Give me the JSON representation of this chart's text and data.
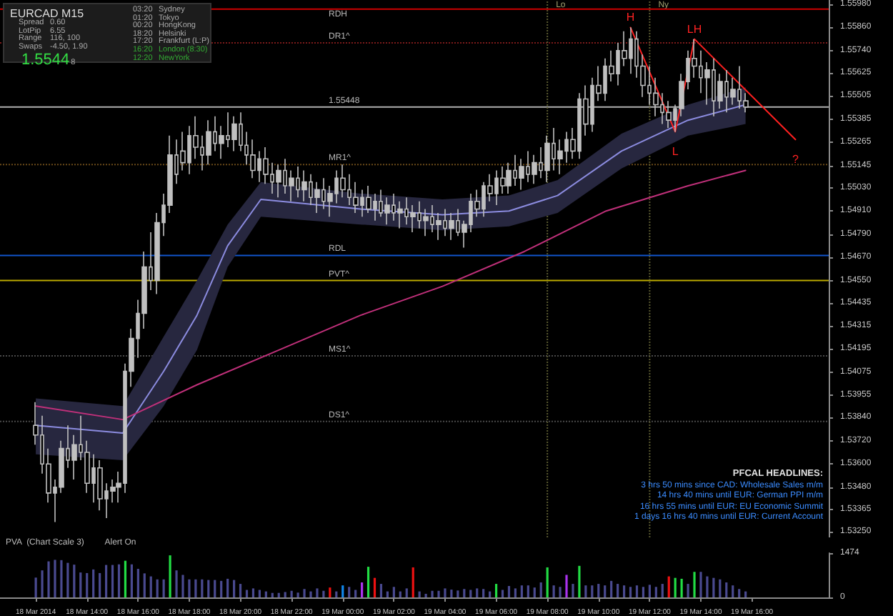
{
  "chart_data": [
    {
      "type": "candlestick",
      "color": "#c0c0c0",
      "tick_labels": "y",
      "xlim": [
        "2014-03-18T10:36",
        "2014-03-19T19:00"
      ],
      "ylim": [
        1.5322,
        1.56
      ],
      "yticks": [
        {
          "value": 1.5598,
          "label": "1.55980"
        },
        {
          "value": 1.5586,
          "label": "1.55860"
        },
        {
          "value": 1.5574,
          "label": "1.55740"
        },
        1.55625,
        1.55505,
        1.55385,
        1.55265,
        1.55145,
        {
          "value": 1.5503,
          "label": "1.55030"
        },
        {
          "value": 1.5491,
          "label": "1.54910"
        },
        {
          "value": 1.5479,
          "label": "1.54790"
        },
        {
          "value": 1.5467,
          "label": "1.54670"
        },
        {
          "value": 1.5455,
          "label": "1.54550"
        },
        1.54435,
        1.54315,
        1.54195,
        1.54075,
        1.53955,
        {
          "value": 1.5384,
          "label": "1.53840"
        },
        {
          "value": 1.5372,
          "label": "1.53720"
        },
        {
          "value": 1.536,
          "label": "1.53600"
        },
        {
          "value": 1.5348,
          "label": "1.53480"
        },
        1.53365,
        {
          "value": 1.5325,
          "label": "1.53250"
        }
      ],
      "x": [
        "2014-03-18T12:00",
        "2014-03-18T12:15",
        "2014-03-18T12:30",
        "2014-03-18T12:45",
        "2014-03-18T13:00",
        "2014-03-18T13:15",
        "2014-03-18T13:30",
        "2014-03-18T13:45",
        "2014-03-18T14:00",
        "2014-03-18T14:15",
        "2014-03-18T14:30",
        "2014-03-18T14:45",
        "2014-03-18T15:00",
        "2014-03-18T15:15",
        "2014-03-18T15:30",
        "2014-03-18T15:45",
        "2014-03-18T16:00",
        "2014-03-18T16:15",
        "2014-03-18T16:30",
        "2014-03-18T16:45",
        "2014-03-18T17:00",
        "2014-03-18T17:15",
        "2014-03-18T17:30",
        "2014-03-18T17:45",
        "2014-03-18T18:00",
        "2014-03-18T18:15",
        "2014-03-18T18:30",
        "2014-03-18T18:45",
        "2014-03-18T19:00",
        "2014-03-18T19:15",
        "2014-03-18T19:30",
        "2014-03-18T19:45",
        "2014-03-18T20:00",
        "2014-03-18T20:15",
        "2014-03-18T20:30",
        "2014-03-18T20:45",
        "2014-03-18T21:00",
        "2014-03-18T21:15",
        "2014-03-18T21:30",
        "2014-03-18T21:45",
        "2014-03-18T22:00",
        "2014-03-18T22:15",
        "2014-03-18T22:30",
        "2014-03-18T22:45",
        "2014-03-18T23:00",
        "2014-03-18T23:15",
        "2014-03-18T23:30",
        "2014-03-18T23:45",
        "2014-03-19T00:00",
        "2014-03-19T00:15",
        "2014-03-19T00:30",
        "2014-03-19T00:45",
        "2014-03-19T01:00",
        "2014-03-19T01:15",
        "2014-03-19T01:30",
        "2014-03-19T01:45",
        "2014-03-19T02:00",
        "2014-03-19T02:15",
        "2014-03-19T02:30",
        "2014-03-19T02:45",
        "2014-03-19T03:00",
        "2014-03-19T03:15",
        "2014-03-19T03:30",
        "2014-03-19T03:45",
        "2014-03-19T04:00",
        "2014-03-19T04:15",
        "2014-03-19T04:30",
        "2014-03-19T04:45",
        "2014-03-19T05:00",
        "2014-03-19T05:15",
        "2014-03-19T05:30",
        "2014-03-19T05:45",
        "2014-03-19T06:00",
        "2014-03-19T06:15",
        "2014-03-19T06:30",
        "2014-03-19T06:45",
        "2014-03-19T07:00",
        "2014-03-19T07:15",
        "2014-03-19T07:30",
        "2014-03-19T07:45",
        "2014-03-19T08:00",
        "2014-03-19T08:15",
        "2014-03-19T08:30",
        "2014-03-19T08:45",
        "2014-03-19T09:00",
        "2014-03-19T09:15",
        "2014-03-19T09:30",
        "2014-03-19T09:45",
        "2014-03-19T10:00",
        "2014-03-19T10:15",
        "2014-03-19T10:30",
        "2014-03-19T10:45",
        "2014-03-19T11:00",
        "2014-03-19T11:15",
        "2014-03-19T11:30",
        "2014-03-19T11:45",
        "2014-03-19T12:00",
        "2014-03-19T12:15",
        "2014-03-19T12:30",
        "2014-03-19T12:45",
        "2014-03-19T13:00",
        "2014-03-19T13:15",
        "2014-03-19T13:30",
        "2014-03-19T13:45",
        "2014-03-19T14:00",
        "2014-03-19T14:15",
        "2014-03-19T14:30",
        "2014-03-19T14:45",
        "2014-03-19T15:00",
        "2014-03-19T15:15",
        "2014-03-19T15:30",
        "2014-03-19T15:45"
      ],
      "ohlc": [
        [
          1.538,
          1.5392,
          1.537,
          1.5375
        ],
        [
          1.5375,
          1.5385,
          1.5355,
          1.536
        ],
        [
          1.536,
          1.5368,
          1.534,
          1.5345
        ],
        [
          1.5345,
          1.5352,
          1.533,
          1.5348
        ],
        [
          1.5348,
          1.5372,
          1.5345,
          1.5368
        ],
        [
          1.5368,
          1.538,
          1.5358,
          1.5362
        ],
        [
          1.5362,
          1.5375,
          1.5352,
          1.537
        ],
        [
          1.537,
          1.5385,
          1.5362,
          1.5366
        ],
        [
          1.5366,
          1.5372,
          1.5345,
          1.535
        ],
        [
          1.535,
          1.5365,
          1.534,
          1.5358
        ],
        [
          1.5358,
          1.5362,
          1.5336,
          1.5342
        ],
        [
          1.5342,
          1.535,
          1.5332,
          1.5346
        ],
        [
          1.5346,
          1.5352,
          1.534,
          1.5348
        ],
        [
          1.5348,
          1.5356,
          1.534,
          1.535
        ],
        [
          1.535,
          1.5412,
          1.5345,
          1.5408
        ],
        [
          1.5408,
          1.543,
          1.54,
          1.5425
        ],
        [
          1.5425,
          1.5445,
          1.5415,
          1.5438
        ],
        [
          1.5438,
          1.547,
          1.543,
          1.5462
        ],
        [
          1.5462,
          1.548,
          1.545,
          1.5455
        ],
        [
          1.5455,
          1.549,
          1.5448,
          1.5485
        ],
        [
          1.5485,
          1.55,
          1.5478,
          1.5494
        ],
        [
          1.5494,
          1.553,
          1.549,
          1.552
        ],
        [
          1.552,
          1.5528,
          1.5505,
          1.551
        ],
        [
          1.5522,
          1.5532,
          1.5512,
          1.5516
        ],
        [
          1.5516,
          1.5535,
          1.551,
          1.553
        ],
        [
          1.553,
          1.554,
          1.5518,
          1.5524
        ],
        [
          1.5524,
          1.553,
          1.5512,
          1.552
        ],
        [
          1.552,
          1.5538,
          1.5515,
          1.5532
        ],
        [
          1.5532,
          1.554,
          1.5522,
          1.5526
        ],
        [
          1.5526,
          1.5535,
          1.5518,
          1.553
        ],
        [
          1.553,
          1.5542,
          1.5524,
          1.5528
        ],
        [
          1.5528,
          1.554,
          1.5522,
          1.5536
        ],
        [
          1.5536,
          1.5542,
          1.5522,
          1.5525
        ],
        [
          1.5525,
          1.5532,
          1.5515,
          1.552
        ],
        [
          1.552,
          1.5528,
          1.5508,
          1.5512
        ],
        [
          1.5512,
          1.5522,
          1.5506,
          1.5518
        ],
        [
          1.5518,
          1.5524,
          1.5505,
          1.551
        ],
        [
          1.551,
          1.5516,
          1.55,
          1.5506
        ],
        [
          1.5506,
          1.5515,
          1.5498,
          1.5512
        ],
        [
          1.5512,
          1.5518,
          1.55,
          1.5504
        ],
        [
          1.5504,
          1.5512,
          1.5496,
          1.5508
        ],
        [
          1.5508,
          1.5514,
          1.5498,
          1.5502
        ],
        [
          1.5502,
          1.5512,
          1.5496,
          1.5506
        ],
        [
          1.5506,
          1.551,
          1.5494,
          1.5498
        ],
        [
          1.5498,
          1.5506,
          1.549,
          1.5502
        ],
        [
          1.5502,
          1.5508,
          1.5492,
          1.5496
        ],
        [
          1.5496,
          1.5504,
          1.5488,
          1.55
        ],
        [
          1.55,
          1.5512,
          1.5495,
          1.5508
        ],
        [
          1.5508,
          1.5515,
          1.5498,
          1.5502
        ],
        [
          1.5502,
          1.551,
          1.5494,
          1.5498
        ],
        [
          1.5498,
          1.5506,
          1.549,
          1.5494
        ],
        [
          1.5494,
          1.5502,
          1.5488,
          1.5498
        ],
        [
          1.5498,
          1.5504,
          1.549,
          1.5492
        ],
        [
          1.5492,
          1.55,
          1.5486,
          1.5496
        ],
        [
          1.5496,
          1.5502,
          1.5488,
          1.549
        ],
        [
          1.549,
          1.5498,
          1.5484,
          1.5494
        ],
        [
          1.5494,
          1.55,
          1.5486,
          1.549
        ],
        [
          1.549,
          1.5496,
          1.5482,
          1.5492
        ],
        [
          1.5492,
          1.5498,
          1.5484,
          1.5488
        ],
        [
          1.5488,
          1.5494,
          1.548,
          1.549
        ],
        [
          1.549,
          1.5496,
          1.5482,
          1.5486
        ],
        [
          1.5486,
          1.5492,
          1.5478,
          1.5488
        ],
        [
          1.5488,
          1.5494,
          1.548,
          1.5484
        ],
        [
          1.5484,
          1.549,
          1.5476,
          1.5486
        ],
        [
          1.5486,
          1.5492,
          1.5478,
          1.5482
        ],
        [
          1.5482,
          1.549,
          1.5476,
          1.5486
        ],
        [
          1.5486,
          1.5492,
          1.5478,
          1.548
        ],
        [
          1.548,
          1.5486,
          1.5472,
          1.5484
        ],
        [
          1.5484,
          1.55,
          1.548,
          1.5496
        ],
        [
          1.5496,
          1.5502,
          1.5488,
          1.5492
        ],
        [
          1.5492,
          1.5506,
          1.5488,
          1.5504
        ],
        [
          1.5504,
          1.551,
          1.5496,
          1.55
        ],
        [
          1.55,
          1.5512,
          1.5494,
          1.5508
        ],
        [
          1.5508,
          1.5514,
          1.55,
          1.5504
        ],
        [
          1.5504,
          1.5516,
          1.55,
          1.5512
        ],
        [
          1.5512,
          1.552,
          1.5504,
          1.5508
        ],
        [
          1.5508,
          1.5518,
          1.5502,
          1.5514
        ],
        [
          1.5514,
          1.5522,
          1.5506,
          1.551
        ],
        [
          1.551,
          1.552,
          1.5505,
          1.5516
        ],
        [
          1.5516,
          1.5524,
          1.5508,
          1.5512
        ],
        [
          1.5512,
          1.553,
          1.5506,
          1.5526
        ],
        [
          1.5526,
          1.5534,
          1.5512,
          1.5518
        ],
        [
          1.5518,
          1.5528,
          1.551,
          1.5522
        ],
        [
          1.5522,
          1.5532,
          1.5516,
          1.5528
        ],
        [
          1.5528,
          1.5534,
          1.5518,
          1.5522
        ],
        [
          1.5522,
          1.5552,
          1.5518,
          1.5549
        ],
        [
          1.5549,
          1.5556,
          1.553,
          1.5536
        ],
        [
          1.5536,
          1.556,
          1.5532,
          1.5556
        ],
        [
          1.5556,
          1.5566,
          1.5548,
          1.5552
        ],
        [
          1.5552,
          1.557,
          1.5548,
          1.5566
        ],
        [
          1.5566,
          1.5574,
          1.5558,
          1.5562
        ],
        [
          1.5562,
          1.5578,
          1.5556,
          1.5574
        ],
        [
          1.5574,
          1.5584,
          1.5566,
          1.557
        ],
        [
          1.557,
          1.5586,
          1.5562,
          1.558
        ],
        [
          1.558,
          1.5584,
          1.556,
          1.5566
        ],
        [
          1.5566,
          1.5572,
          1.555,
          1.5556
        ],
        [
          1.5556,
          1.5566,
          1.5546,
          1.5552
        ],
        [
          1.5552,
          1.556,
          1.554,
          1.5546
        ],
        [
          1.5546,
          1.5552,
          1.5536,
          1.5542
        ],
        [
          1.5542,
          1.5548,
          1.5534,
          1.5538
        ],
        [
          1.5538,
          1.5546,
          1.5532,
          1.5544
        ],
        [
          1.5544,
          1.5562,
          1.554,
          1.5558
        ],
        [
          1.5558,
          1.5574,
          1.5554,
          1.557
        ],
        [
          1.557,
          1.558,
          1.556,
          1.5566
        ],
        [
          1.5566,
          1.5574,
          1.5552,
          1.556
        ],
        [
          1.556,
          1.5568,
          1.5546,
          1.5564
        ],
        [
          1.5564,
          1.557,
          1.554,
          1.5548
        ],
        [
          1.5548,
          1.5562,
          1.5544,
          1.5558
        ],
        [
          1.5558,
          1.5564,
          1.5542,
          1.555
        ],
        [
          1.555,
          1.556,
          1.5546,
          1.5554
        ],
        [
          1.5554,
          1.5566,
          1.5544,
          1.5548
        ],
        [
          1.5548,
          1.5552,
          1.5542,
          1.55448
        ]
      ],
      "series": [
        {
          "type": "line",
          "color": "#8c8ce0",
          "x": [
            "2014-03-18T12:00",
            "2014-03-18T15:24",
            "2014-03-18T17:00",
            "2014-03-18T18:18",
            "2014-03-18T19:30",
            "2014-03-18T20:48",
            "2014-03-19T00:42",
            "2014-03-19T03:54",
            "2014-03-19T06:30",
            "2014-03-19T08:24",
            "2014-03-19T10:54",
            "2014-03-19T13:30",
            "2014-03-19T15:45"
          ],
          "values": [
            1.538,
            1.5376,
            1.5408,
            1.5437,
            1.5473,
            1.5497,
            1.5492,
            1.5489,
            1.5491,
            1.5499,
            1.5522,
            1.5538,
            1.5546
          ],
          "lower": [
            1.5365,
            1.5362,
            1.539,
            1.5419,
            1.5462,
            1.5488,
            1.5484,
            1.5481,
            1.5483,
            1.549,
            1.5513,
            1.553,
            1.5536
          ],
          "upper": [
            1.5394,
            1.539,
            1.5426,
            1.5455,
            1.5484,
            1.5506,
            1.55,
            1.5497,
            1.5499,
            1.5507,
            1.5531,
            1.5546,
            1.5555
          ]
        },
        {
          "type": "line",
          "color": "#c0307a",
          "x": [
            "2014-03-18T12:00",
            "2014-03-18T15:24",
            "2014-03-18T18:18",
            "2014-03-18T21:30",
            "2014-03-19T00:42",
            "2014-03-19T03:54",
            "2014-03-19T07:06",
            "2014-03-19T10:18",
            "2014-03-19T13:30",
            "2014-03-19T15:45"
          ],
          "values": [
            1.539,
            1.5383,
            1.5401,
            1.5419,
            1.5437,
            1.5452,
            1.547,
            1.5491,
            1.5504,
            1.5512
          ]
        },
        {
          "type": "line",
          "color": "#ff2020",
          "x": [
            "2014-03-19T11:15",
            "2014-03-19T13:00",
            "2014-03-19T13:45",
            "2014-03-19T17:42"
          ],
          "values": [
            1.5586,
            1.5532,
            1.558,
            1.5528
          ]
        }
      ],
      "ref_lines": [
        {
          "axis": "y",
          "value": 1.55955,
          "label": "RDH",
          "color": "#cc0000",
          "line_style": "solid"
        },
        {
          "axis": "y",
          "value": 1.5578,
          "label": "DR1^",
          "color": "#7a1a1a",
          "line_style": "dotted"
        },
        {
          "axis": "y",
          "value": 1.5515,
          "label": "MR1^",
          "color": "#6a4a18",
          "line_style": "dotted"
        },
        {
          "axis": "y",
          "value": 1.5468,
          "label": "RDL",
          "color": "#1155cc",
          "line_style": "solid"
        },
        {
          "axis": "y",
          "value": 1.5455,
          "label": "PVT^",
          "color": "#bbaa00",
          "line_style": "solid"
        },
        {
          "axis": "y",
          "value": 1.5416,
          "label": "MS1^",
          "color": "#4a4a4a",
          "line_style": "dotted"
        },
        {
          "axis": "y",
          "value": 1.5382,
          "label": "DS1^",
          "color": "#4a4a4a",
          "line_style": "dotted"
        },
        {
          "axis": "y",
          "value": 1.55448,
          "label": "1.55448",
          "color": "#b0b0b0",
          "line_style": "solid"
        },
        {
          "axis": "x",
          "value": "2014-03-19T08:00",
          "label": "Lo",
          "color": "#5a5a30",
          "line_style": "dotted"
        },
        {
          "axis": "x",
          "value": "2014-03-19T12:00",
          "label": "Ny",
          "color": "#5a5a30",
          "line_style": "dotted"
        }
      ],
      "annotations": [
        {
          "text": "H",
          "x": "2014-03-19T11:15",
          "y": 1.5586
        },
        {
          "text": "L",
          "x": "2014-03-19T13:00",
          "y": 1.5532
        },
        {
          "text": "LH",
          "x": "2014-03-19T13:45",
          "y": 1.558
        },
        {
          "text": "?",
          "x": "2014-03-19T17:42",
          "y": 1.5528
        }
      ]
    },
    {
      "type": "bar",
      "title": "PVA  (Chart Scale 3)",
      "annotations": [
        "Alert On"
      ],
      "xlim": [
        "2014-03-18T10:36",
        "2014-03-19T19:00"
      ],
      "ylim": [
        0,
        1474
      ],
      "yticks": [
        0,
        1474
      ],
      "xticks": [
        {
          "value": "2014-03-18T12:00",
          "label": "18 Mar 2014"
        },
        {
          "value": "2014-03-18T14:00",
          "label": "18 Mar 14:00"
        },
        {
          "value": "2014-03-18T16:00",
          "label": "18 Mar 16:00"
        },
        {
          "value": "2014-03-18T18:00",
          "label": "18 Mar 18:00"
        },
        {
          "value": "2014-03-18T20:00",
          "label": "18 Mar 20:00"
        },
        {
          "value": "2014-03-18T22:00",
          "label": "18 Mar 22:00"
        },
        {
          "value": "2014-03-19T00:00",
          "label": "19 Mar 00:00"
        },
        {
          "value": "2014-03-19T02:00",
          "label": "19 Mar 02:00"
        },
        {
          "value": "2014-03-19T04:00",
          "label": "19 Mar 04:00"
        },
        {
          "value": "2014-03-19T06:00",
          "label": "19 Mar 06:00"
        },
        {
          "value": "2014-03-19T08:00",
          "label": "19 Mar 08:00"
        },
        {
          "value": "2014-03-19T10:00",
          "label": "19 Mar 10:00"
        },
        {
          "value": "2014-03-19T12:00",
          "label": "19 Mar 12:00"
        },
        {
          "value": "2014-03-19T14:00",
          "label": "19 Mar 14:00"
        },
        {
          "value": "2014-03-19T16:00",
          "label": "19 Mar 16:00"
        }
      ],
      "x": [
        "2014-03-18T12:00",
        "2014-03-18T12:15",
        "2014-03-18T12:30",
        "2014-03-18T12:45",
        "2014-03-18T13:00",
        "2014-03-18T13:15",
        "2014-03-18T13:30",
        "2014-03-18T13:45",
        "2014-03-18T14:00",
        "2014-03-18T14:15",
        "2014-03-18T14:30",
        "2014-03-18T14:45",
        "2014-03-18T15:00",
        "2014-03-18T15:15",
        "2014-03-18T15:30",
        "2014-03-18T15:45",
        "2014-03-18T16:00",
        "2014-03-18T16:15",
        "2014-03-18T16:30",
        "2014-03-18T16:45",
        "2014-03-18T17:00",
        "2014-03-18T17:15",
        "2014-03-18T17:30",
        "2014-03-18T17:45",
        "2014-03-18T18:00",
        "2014-03-18T18:15",
        "2014-03-18T18:30",
        "2014-03-18T18:45",
        "2014-03-18T19:00",
        "2014-03-18T19:15",
        "2014-03-18T19:30",
        "2014-03-18T19:45",
        "2014-03-18T20:00",
        "2014-03-18T20:15",
        "2014-03-18T20:30",
        "2014-03-18T20:45",
        "2014-03-18T21:00",
        "2014-03-18T21:15",
        "2014-03-18T21:30",
        "2014-03-18T21:45",
        "2014-03-18T22:00",
        "2014-03-18T22:15",
        "2014-03-18T22:30",
        "2014-03-18T22:45",
        "2014-03-18T23:00",
        "2014-03-18T23:15",
        "2014-03-18T23:30",
        "2014-03-18T23:45",
        "2014-03-19T00:00",
        "2014-03-19T00:15",
        "2014-03-19T00:30",
        "2014-03-19T00:45",
        "2014-03-19T01:00",
        "2014-03-19T01:15",
        "2014-03-19T01:30",
        "2014-03-19T01:45",
        "2014-03-19T02:00",
        "2014-03-19T02:15",
        "2014-03-19T02:30",
        "2014-03-19T02:45",
        "2014-03-19T03:00",
        "2014-03-19T03:15",
        "2014-03-19T03:30",
        "2014-03-19T03:45",
        "2014-03-19T04:00",
        "2014-03-19T04:15",
        "2014-03-19T04:30",
        "2014-03-19T04:45",
        "2014-03-19T05:00",
        "2014-03-19T05:15",
        "2014-03-19T05:30",
        "2014-03-19T05:45",
        "2014-03-19T06:00",
        "2014-03-19T06:15",
        "2014-03-19T06:30",
        "2014-03-19T06:45",
        "2014-03-19T07:00",
        "2014-03-19T07:15",
        "2014-03-19T07:30",
        "2014-03-19T07:45",
        "2014-03-19T08:00",
        "2014-03-19T08:15",
        "2014-03-19T08:30",
        "2014-03-19T08:45",
        "2014-03-19T09:00",
        "2014-03-19T09:15",
        "2014-03-19T09:30",
        "2014-03-19T09:45",
        "2014-03-19T10:00",
        "2014-03-19T10:15",
        "2014-03-19T10:30",
        "2014-03-19T10:45",
        "2014-03-19T11:00",
        "2014-03-19T11:15",
        "2014-03-19T11:30",
        "2014-03-19T11:45",
        "2014-03-19T12:00",
        "2014-03-19T12:15",
        "2014-03-19T12:30",
        "2014-03-19T12:45",
        "2014-03-19T13:00",
        "2014-03-19T13:15",
        "2014-03-19T13:30",
        "2014-03-19T13:45",
        "2014-03-19T14:00",
        "2014-03-19T14:15",
        "2014-03-19T14:30",
        "2014-03-19T14:45",
        "2014-03-19T15:00",
        "2014-03-19T15:15",
        "2014-03-19T15:30",
        "2014-03-19T15:45"
      ],
      "values": [
        660,
        900,
        1200,
        1250,
        1240,
        1150,
        1090,
        830,
        810,
        930,
        810,
        1080,
        1080,
        1100,
        1220,
        1100,
        950,
        800,
        700,
        600,
        600,
        1400,
        900,
        750,
        600,
        600,
        600,
        580,
        580,
        550,
        620,
        580,
        450,
        250,
        300,
        250,
        200,
        150,
        150,
        180,
        220,
        160,
        280,
        200,
        300,
        220,
        330,
        200,
        400,
        350,
        250,
        500,
        1020,
        650,
        450,
        200,
        350,
        200,
        300,
        1000,
        200,
        120,
        220,
        220,
        300,
        260,
        230,
        280,
        250,
        300,
        280,
        200,
        450,
        250,
        380,
        300,
        400,
        400,
        330,
        500,
        1000,
        400,
        350,
        750,
        450,
        1050,
        400,
        400,
        450,
        400,
        550,
        450,
        400,
        350,
        400,
        350,
        420,
        350,
        450,
        700,
        650,
        620,
        450,
        850,
        850,
        700,
        650,
        600,
        500,
        400,
        280,
        200
      ],
      "colors": [
        "#4a4a90",
        "#4a4a90",
        "#4a4a90",
        "#4a4a90",
        "#4a4a90",
        "#4a4a90",
        "#4a4a90",
        "#4a4a90",
        "#4a4a90",
        "#4a4a90",
        "#4a4a90",
        "#4a4a90",
        "#4a4a90",
        "#4a4a90",
        "#22dd44",
        "#4a4a90",
        "#4a4a90",
        "#4a4a90",
        "#4a4a90",
        "#4a4a90",
        "#4a4a90",
        "#22dd44",
        "#4a4a90",
        "#4a4a90",
        "#4a4a90",
        "#4a4a90",
        "#4a4a90",
        "#4a4a90",
        "#4a4a90",
        "#4a4a90",
        "#4a4a90",
        "#4a4a90",
        "#4a4a90",
        "#4a4a90",
        "#4a4a90",
        "#4a4a90",
        "#4a4a90",
        "#4a4a90",
        "#4a4a90",
        "#4a4a90",
        "#4a4a90",
        "#4a4a90",
        "#4a4a90",
        "#4a4a90",
        "#4a4a90",
        "#4a4a90",
        "#ee1111",
        "#4a4a90",
        "#1188ee",
        "#4a4a90",
        "#4a4a90",
        "#aa33ee",
        "#22dd44",
        "#ee1111",
        "#4a4a90",
        "#4a4a90",
        "#4a4a90",
        "#4a4a90",
        "#4a4a90",
        "#ee1111",
        "#4a4a90",
        "#4a4a90",
        "#4a4a90",
        "#4a4a90",
        "#4a4a90",
        "#4a4a90",
        "#4a4a90",
        "#4a4a90",
        "#4a4a90",
        "#4a4a90",
        "#4a4a90",
        "#4a4a90",
        "#22dd44",
        "#4a4a90",
        "#4a4a90",
        "#4a4a90",
        "#4a4a90",
        "#4a4a90",
        "#4a4a90",
        "#4a4a90",
        "#22dd44",
        "#4a4a90",
        "#4a4a90",
        "#aa33ee",
        "#4a4a90",
        "#22dd44",
        "#4a4a90",
        "#4a4a90",
        "#4a4a90",
        "#4a4a90",
        "#4a4a90",
        "#4a4a90",
        "#4a4a90",
        "#4a4a90",
        "#4a4a90",
        "#4a4a90",
        "#4a4a90",
        "#4a4a90",
        "#4a4a90",
        "#ee1111",
        "#22dd44",
        "#22dd44",
        "#4a4a90",
        "#22dd44",
        "#4a4a90",
        "#4a4a90",
        "#4a4a90",
        "#4a4a90",
        "#4a4a90",
        "#4a4a90",
        "#4a4a90",
        "#4a4a90"
      ]
    },
    {
      "type": "other",
      "title": "EURCAD  M15",
      "annotations": [
        "Spread",
        "0.60",
        "LotPip",
        "6.55",
        "Range",
        "116, 100",
        "Swaps",
        "-4.50, 1.90",
        "1.5544",
        "8",
        "03:20",
        "Sydney",
        "01:20",
        "Tokyo",
        "00:20",
        "HongKong",
        "18:20",
        "Helsinki",
        "17:20",
        "Frankfurt (L:P)",
        "16:20",
        "London (8:30)",
        "12:20",
        "NewYork"
      ]
    },
    {
      "type": "other",
      "title": "PFCAL HEADLINES:",
      "annotations": [
        "3 hrs 50 mins since CAD: Wholesale Sales m/m",
        "14 hrs 40 mins until EUR: German PPI m/m",
        "16 hrs 55 mins until EUR: EU Economic Summit",
        "1 days 16 hrs 40 mins until EUR: Current Account"
      ]
    }
  ]
}
